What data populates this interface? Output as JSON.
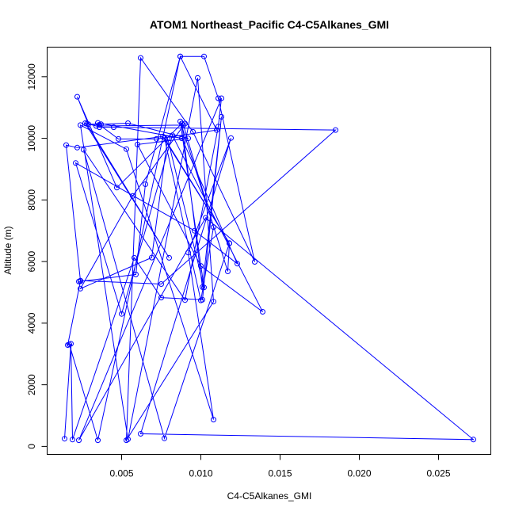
{
  "chart_data": {
    "type": "line",
    "title": "ATOM1 Northeast_Pacific C4-C5Alkanes_GMI",
    "xlabel": "C4-C5Alkanes_GMI",
    "ylabel": "Altitude (m)",
    "xlim": [
      0.0003,
      0.0283
    ],
    "ylim": [
      -260,
      12960
    ],
    "x_ticks": [
      0.005,
      0.01,
      0.015,
      0.02,
      0.025
    ],
    "x_tick_labels": [
      "0.005",
      "0.010",
      "0.015",
      "0.020",
      "0.025"
    ],
    "y_ticks": [
      0,
      2000,
      4000,
      6000,
      8000,
      10000,
      12000
    ],
    "y_tick_labels": [
      "0",
      "2000",
      "4000",
      "6000",
      "8000",
      "10000",
      "12000"
    ],
    "grid": false,
    "legend": "none",
    "series_color": "#0000ff",
    "series": [
      {
        "x": [
          0.0014,
          0.0018,
          0.0019,
          0.0058,
          0.0075,
          0.0101,
          0.0113,
          0.0101,
          0.0088,
          0.0047,
          0.0022,
          0.0029,
          0.0037,
          0.0054,
          0.0092,
          0.006,
          0.01,
          0.0139,
          0.0082,
          0.005,
          0.0021,
          0.0096,
          0.0123,
          0.0088,
          0.0035,
          0.0036,
          0.0045,
          0.0185,
          0.0075,
          0.0024,
          0.0015,
          0.0022,
          0.0076,
          0.0118,
          0.0077,
          0.01,
          0.0108,
          0.0089,
          0.0034,
          0.0027,
          0.008,
          0.0028,
          0.0036,
          0.0048,
          0.0072,
          0.011,
          0.0087,
          0.0035,
          0.0017,
          0.0016,
          0.0024,
          0.0023,
          0.0059,
          0.0065,
          0.0087,
          0.0102,
          0.0111,
          0.0134,
          0.0095,
          0.0062,
          0.0053,
          0.0108,
          0.0098,
          0.0054,
          0.0024,
          0.0053,
          0.0108,
          0.0092,
          0.0119,
          0.0062,
          0.0272,
          0.0103,
          0.0023,
          0.0113,
          0.0111,
          0.009,
          0.0026,
          0.0077,
          0.0118,
          0.0117,
          0.0087,
          0.0102,
          0.0079,
          0.0069,
          0.0024,
          0.0057,
          0.009
        ],
        "y": [
          250,
          3330,
          220,
          6120,
          4830,
          4760,
          10700,
          5170,
          10480,
          8400,
          11350,
          10460,
          10460,
          10490,
          10000,
          9800,
          5860,
          4370,
          10100,
          4300,
          9200,
          7000,
          5930,
          10000,
          10500,
          10360,
          10360,
          10270,
          5270,
          5380,
          9780,
          9700,
          10060,
          6600,
          10010,
          4740,
          7120,
          10430,
          10400,
          10490,
          6120,
          10470,
          10440,
          9980,
          9980,
          10270,
          12660,
          200,
          3310,
          3290,
          5360,
          5350,
          5580,
          8510,
          12660,
          12660,
          11300,
          5990,
          10210,
          12610,
          200,
          4700,
          11960,
          230,
          10430,
          9650,
          870,
          6290,
          10010,
          410,
          220,
          7420,
          200,
          11300,
          10380,
          4750,
          9630,
          260,
          6590,
          5680,
          10550,
          5160,
          10000,
          6130,
          5120,
          8130,
          10480
        ]
      }
    ]
  }
}
